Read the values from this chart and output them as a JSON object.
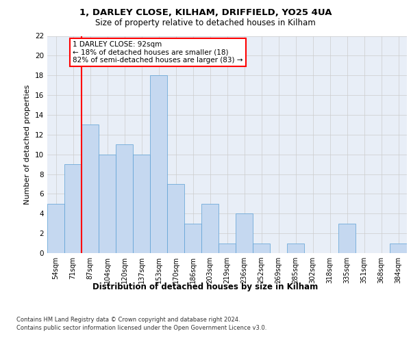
{
  "title1": "1, DARLEY CLOSE, KILHAM, DRIFFIELD, YO25 4UA",
  "title2": "Size of property relative to detached houses in Kilham",
  "xlabel": "Distribution of detached houses by size in Kilham",
  "ylabel": "Number of detached properties",
  "categories": [
    "54sqm",
    "71sqm",
    "87sqm",
    "104sqm",
    "120sqm",
    "137sqm",
    "153sqm",
    "170sqm",
    "186sqm",
    "203sqm",
    "219sqm",
    "236sqm",
    "252sqm",
    "269sqm",
    "285sqm",
    "302sqm",
    "318sqm",
    "335sqm",
    "351sqm",
    "368sqm",
    "384sqm"
  ],
  "values": [
    5,
    9,
    13,
    10,
    11,
    10,
    18,
    7,
    3,
    5,
    1,
    4,
    1,
    0,
    1,
    0,
    0,
    3,
    0,
    0,
    1
  ],
  "bar_color": "#c5d8f0",
  "bar_edge_color": "#5a9fd4",
  "annotation_title": "1 DARLEY CLOSE: 92sqm",
  "annotation_line1": "← 18% of detached houses are smaller (18)",
  "annotation_line2": "82% of semi-detached houses are larger (83) →",
  "annotation_box_color": "white",
  "annotation_box_edge_color": "red",
  "vline_color": "red",
  "ylim": [
    0,
    22
  ],
  "yticks": [
    0,
    2,
    4,
    6,
    8,
    10,
    12,
    14,
    16,
    18,
    20,
    22
  ],
  "grid_color": "#cccccc",
  "bg_color": "#e8eef7",
  "footnote1": "Contains HM Land Registry data © Crown copyright and database right 2024.",
  "footnote2": "Contains public sector information licensed under the Open Government Licence v3.0."
}
